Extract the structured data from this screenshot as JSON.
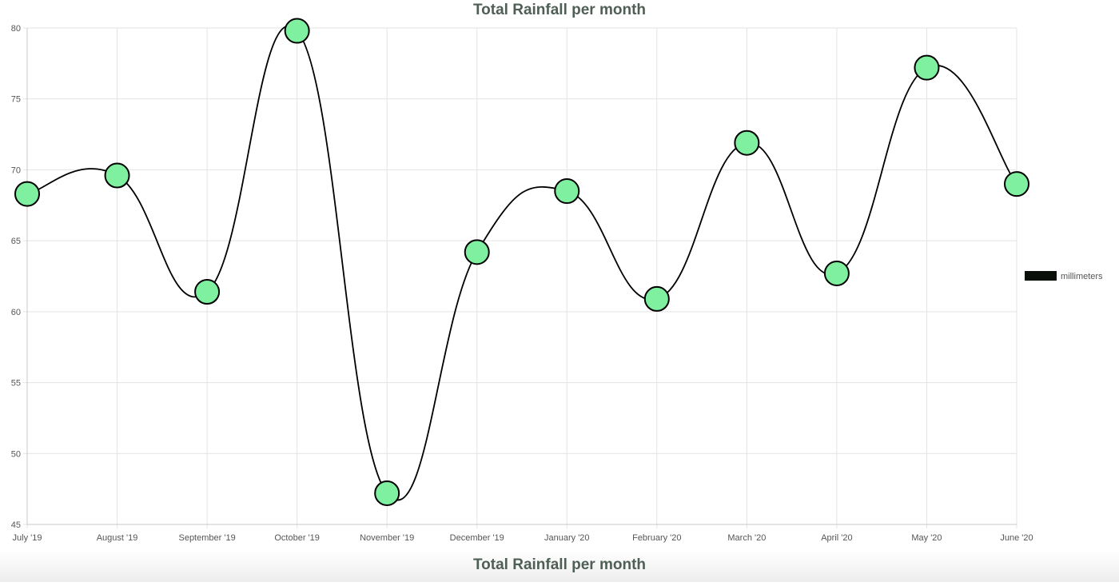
{
  "chart_data": {
    "type": "line",
    "title": "Total Rainfall per month",
    "bottom_title": "Total Rainfall per month",
    "categories": [
      "July '19",
      "August '19",
      "September '19",
      "October '19",
      "November '19",
      "December '19",
      "January '20",
      "February '20",
      "March '20",
      "April '20",
      "May '20",
      "June '20"
    ],
    "series": [
      {
        "name": "millimeters",
        "values": [
          68.3,
          69.6,
          61.4,
          79.8,
          47.2,
          64.2,
          68.5,
          60.9,
          71.9,
          62.7,
          77.2,
          69.0
        ],
        "line_color": "#000000",
        "point_fill": "#7ef09f",
        "point_stroke": "#000000"
      }
    ],
    "ylim": [
      45,
      80
    ],
    "y_ticks": [
      45,
      50,
      55,
      60,
      65,
      70,
      75,
      80
    ],
    "xlabel": "",
    "ylabel": "",
    "grid": true,
    "legend_position": "right",
    "legend_swatch_color": "#0a0f0a"
  }
}
